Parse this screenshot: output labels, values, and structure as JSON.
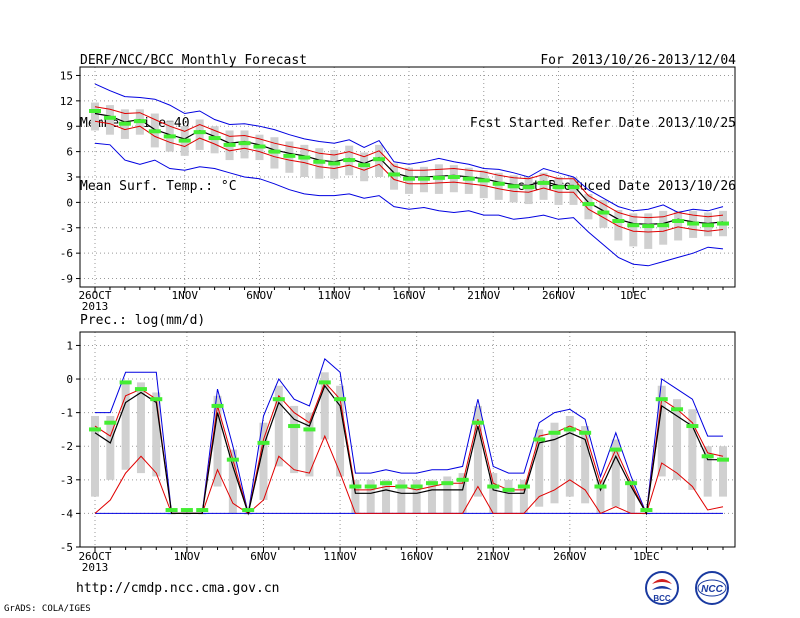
{
  "header": {
    "title": "DERF/NCC/BCC Monthly Forecast",
    "member_size": "Member Size=40",
    "variable": "Mean Surf. Temp.: °C",
    "period": "For 2013/10/26-2013/12/04",
    "started": "Fcst Started Refer Date 2013/10/25",
    "produced": "Fcst Produced Date 2013/10/26"
  },
  "footer": {
    "url": "http://cmdp.ncc.cma.gov.cn",
    "credit": "GrADS: COLA/IGES",
    "logo_left": "BCC",
    "logo_right": "NCC"
  },
  "colors": {
    "ensemble_mean": "#000000",
    "spread": "#e00000",
    "extreme": "#0000e0",
    "box": "#d0d0d0",
    "median_marker": "#44ee33"
  },
  "chart_data": [
    {
      "type": "box-line",
      "title": "Mean Surf. Temp.: °C",
      "x_tick_labels": [
        "26OCT",
        "1NOV",
        "6NOV",
        "11NOV",
        "16NOV",
        "21NOV",
        "26NOV",
        "1DEC"
      ],
      "x_tick_days": [
        0,
        6,
        11,
        16,
        21,
        26,
        31,
        36
      ],
      "x_sublabel": "2013",
      "ylim": [
        -10,
        16
      ],
      "y_ticks": [
        15,
        12,
        9,
        6,
        3,
        0,
        -3,
        -6,
        -9
      ],
      "grid": true,
      "series": [
        {
          "role": "ensemble_mean",
          "values": [
            10.5,
            10.2,
            9.5,
            9.8,
            8.6,
            8.0,
            7.5,
            8.5,
            7.8,
            7.0,
            7.2,
            6.8,
            6.2,
            5.8,
            5.5,
            5.0,
            4.8,
            5.2,
            4.6,
            5.3,
            3.5,
            3.0,
            3.0,
            3.1,
            3.2,
            3.0,
            2.8,
            2.4,
            2.1,
            2.0,
            2.5,
            2.0,
            2.0,
            0.0,
            -1.0,
            -2.0,
            -2.5,
            -2.6,
            -2.5,
            -2.0,
            -2.3,
            -2.5,
            -2.3
          ]
        },
        {
          "role": "spread_upper",
          "values": [
            11.3,
            11.0,
            10.5,
            10.6,
            9.8,
            9.0,
            8.4,
            9.2,
            8.5,
            7.8,
            7.9,
            7.5,
            7.0,
            6.6,
            6.3,
            5.8,
            5.6,
            6.0,
            5.4,
            6.1,
            4.3,
            3.8,
            3.8,
            3.9,
            4.0,
            3.8,
            3.6,
            3.2,
            2.9,
            2.8,
            3.3,
            2.8,
            2.8,
            0.8,
            -0.2,
            -1.2,
            -1.7,
            -1.8,
            -1.7,
            -1.2,
            -1.5,
            -1.7,
            -1.5
          ]
        },
        {
          "role": "spread_lower",
          "values": [
            9.6,
            9.3,
            8.6,
            9.0,
            7.8,
            7.1,
            6.6,
            7.6,
            6.9,
            6.1,
            6.4,
            6.0,
            5.4,
            5.0,
            4.7,
            4.2,
            4.0,
            4.4,
            3.8,
            4.5,
            2.7,
            2.2,
            2.2,
            2.3,
            2.4,
            2.2,
            2.0,
            1.6,
            1.3,
            1.2,
            1.7,
            1.2,
            1.2,
            -0.8,
            -1.8,
            -2.8,
            -3.4,
            -3.5,
            -3.4,
            -2.9,
            -3.2,
            -3.4,
            -3.2
          ]
        },
        {
          "role": "maximum",
          "values": [
            14.0,
            13.2,
            12.5,
            12.4,
            12.2,
            11.5,
            10.5,
            10.8,
            9.8,
            9.2,
            9.3,
            9.0,
            8.6,
            8.0,
            7.5,
            7.2,
            7.0,
            7.4,
            6.5,
            7.3,
            4.8,
            4.5,
            4.8,
            5.2,
            4.8,
            4.5,
            4.0,
            3.9,
            3.5,
            3.0,
            4.0,
            3.5,
            3.0,
            1.5,
            0.5,
            -0.5,
            -1.0,
            -0.8,
            -0.3,
            -1.2,
            -0.8,
            -1.0,
            -0.5
          ]
        },
        {
          "role": "minimum",
          "values": [
            7.0,
            6.8,
            5.0,
            4.5,
            5.0,
            4.0,
            3.8,
            4.2,
            4.0,
            3.5,
            3.0,
            2.8,
            2.2,
            1.5,
            1.0,
            0.8,
            0.8,
            1.0,
            0.5,
            0.8,
            -0.5,
            -0.8,
            -0.6,
            -1.0,
            -1.2,
            -1.0,
            -1.5,
            -1.5,
            -2.0,
            -1.8,
            -1.5,
            -2.0,
            -1.8,
            -3.5,
            -5.0,
            -6.5,
            -7.3,
            -7.5,
            -7.0,
            -6.5,
            -6.0,
            -5.3,
            -5.5
          ]
        },
        {
          "role": "median",
          "values": [
            10.8,
            10.0,
            9.3,
            9.6,
            8.4,
            7.8,
            7.3,
            8.3,
            7.6,
            6.8,
            7.0,
            6.6,
            6.0,
            5.5,
            5.3,
            4.8,
            4.6,
            5.0,
            4.4,
            5.1,
            3.3,
            2.8,
            2.8,
            2.9,
            3.0,
            2.8,
            2.6,
            2.2,
            1.9,
            1.8,
            2.3,
            1.8,
            1.8,
            -0.2,
            -1.2,
            -2.2,
            -2.7,
            -2.8,
            -2.7,
            -2.2,
            -2.5,
            -2.7,
            -2.5
          ]
        },
        {
          "role": "box_upper",
          "values": [
            11.8,
            11.5,
            11.0,
            11.0,
            10.5,
            9.6,
            9.0,
            9.8,
            9.0,
            8.5,
            8.5,
            8.0,
            7.7,
            7.2,
            6.8,
            6.4,
            6.2,
            6.7,
            5.9,
            6.8,
            4.6,
            4.1,
            4.2,
            4.5,
            4.4,
            4.1,
            3.8,
            3.5,
            3.2,
            3.0,
            3.5,
            3.0,
            3.0,
            1.0,
            0.3,
            -0.9,
            -1.3,
            -1.3,
            -1.0,
            -1.0,
            -1.0,
            -1.2,
            -1.0
          ]
        },
        {
          "role": "box_lower",
          "values": [
            8.5,
            8.0,
            7.5,
            8.0,
            6.5,
            6.0,
            5.5,
            6.2,
            5.8,
            5.0,
            5.2,
            5.0,
            4.0,
            3.5,
            3.0,
            2.8,
            2.8,
            3.2,
            2.5,
            3.0,
            1.5,
            1.0,
            1.2,
            1.0,
            1.2,
            1.0,
            0.5,
            0.3,
            0.0,
            -0.2,
            0.3,
            -0.3,
            -0.3,
            -2.0,
            -3.0,
            -4.5,
            -5.2,
            -5.5,
            -5.0,
            -4.5,
            -4.2,
            -4.0,
            -4.0
          ]
        }
      ]
    },
    {
      "type": "box-line",
      "title": "Prec.: log(mm/d)",
      "x_tick_labels": [
        "26OCT",
        "1NOV",
        "6NOV",
        "11NOV",
        "16NOV",
        "21NOV",
        "26NOV",
        "1DEC"
      ],
      "x_tick_days": [
        0,
        6,
        11,
        16,
        21,
        26,
        31,
        36
      ],
      "x_sublabel": "2013",
      "ylim": [
        -5,
        1.4
      ],
      "y_ticks": [
        1,
        0,
        -1,
        -2,
        -3,
        -4,
        -5
      ],
      "grid": true,
      "series": [
        {
          "role": "ensemble_mean",
          "values": [
            -1.6,
            -1.9,
            -0.7,
            -0.4,
            -0.7,
            -4.0,
            -4.0,
            -4.0,
            -1.0,
            -2.6,
            -4.0,
            -2.0,
            -0.7,
            -1.2,
            -1.4,
            -0.2,
            -0.8,
            -3.4,
            -3.4,
            -3.3,
            -3.4,
            -3.4,
            -3.3,
            -3.3,
            -3.3,
            -1.4,
            -3.3,
            -3.4,
            -3.4,
            -1.9,
            -1.8,
            -1.6,
            -1.8,
            -3.3,
            -2.3,
            -3.2,
            -4.0,
            -0.8,
            -1.1,
            -1.4,
            -2.4,
            -2.4
          ]
        },
        {
          "role": "spread_upper",
          "values": [
            -1.4,
            -1.7,
            -0.5,
            -0.3,
            -0.6,
            -4.0,
            -4.0,
            -4.0,
            -0.8,
            -2.4,
            -4.0,
            -1.8,
            -0.5,
            -1.0,
            -1.3,
            -0.1,
            -0.6,
            -3.3,
            -3.3,
            -3.2,
            -3.2,
            -3.3,
            -3.2,
            -3.1,
            -3.1,
            -1.2,
            -3.1,
            -3.3,
            -3.3,
            -1.7,
            -1.6,
            -1.4,
            -1.6,
            -3.1,
            -2.1,
            -3.1,
            -4.0,
            -0.6,
            -0.9,
            -1.3,
            -2.2,
            -2.3
          ]
        },
        {
          "role": "spread_lower",
          "values": [
            -4.0,
            -3.6,
            -2.8,
            -2.3,
            -2.8,
            -4.0,
            -4.0,
            -4.0,
            -2.7,
            -3.7,
            -4.0,
            -3.6,
            -2.3,
            -2.7,
            -2.8,
            -1.7,
            -2.8,
            -4.0,
            -4.0,
            -4.0,
            -4.0,
            -4.0,
            -4.0,
            -4.0,
            -4.0,
            -3.2,
            -4.0,
            -4.0,
            -4.0,
            -3.5,
            -3.3,
            -3.0,
            -3.3,
            -4.0,
            -3.8,
            -4.0,
            -4.0,
            -2.5,
            -2.8,
            -3.2,
            -3.9,
            -3.8
          ]
        },
        {
          "role": "maximum",
          "values": [
            -1.0,
            -1.0,
            0.2,
            0.2,
            0.2,
            -4.0,
            -4.0,
            -4.0,
            -0.3,
            -2.0,
            -4.0,
            -1.1,
            0.0,
            -0.6,
            -0.8,
            0.6,
            0.2,
            -2.8,
            -2.8,
            -2.7,
            -2.8,
            -2.8,
            -2.7,
            -2.7,
            -2.6,
            -0.6,
            -2.6,
            -2.8,
            -2.8,
            -1.3,
            -1.0,
            -0.9,
            -1.2,
            -2.9,
            -1.6,
            -2.9,
            -4.0,
            0.0,
            -0.3,
            -0.6,
            -1.7,
            -1.7
          ]
        },
        {
          "role": "minimum",
          "values": [
            -4.0,
            -4.0,
            -4.0,
            -4.0,
            -4.0,
            -4.0,
            -4.0,
            -4.0,
            -4.0,
            -4.0,
            -4.0,
            -4.0,
            -4.0,
            -4.0,
            -4.0,
            -4.0,
            -4.0,
            -4.0,
            -4.0,
            -4.0,
            -4.0,
            -4.0,
            -4.0,
            -4.0,
            -4.0,
            -4.0,
            -4.0,
            -4.0,
            -4.0,
            -4.0,
            -4.0,
            -4.0,
            -4.0,
            -4.0,
            -4.0,
            -4.0,
            -4.0,
            -4.0,
            -4.0,
            -4.0,
            -4.0,
            -4.0
          ]
        },
        {
          "role": "median",
          "values": [
            -1.5,
            -1.3,
            -0.1,
            -0.3,
            -0.6,
            -3.9,
            -3.9,
            -3.9,
            -0.8,
            -2.4,
            -3.9,
            -1.9,
            -0.6,
            -1.4,
            -1.5,
            -0.1,
            -0.6,
            -3.2,
            -3.2,
            -3.1,
            -3.2,
            -3.2,
            -3.1,
            -3.1,
            -3.0,
            -1.3,
            -3.2,
            -3.3,
            -3.2,
            -1.8,
            -1.6,
            -1.5,
            -1.6,
            -3.2,
            -2.1,
            -3.1,
            -3.9,
            -0.6,
            -0.9,
            -1.4,
            -2.3,
            -2.4
          ]
        },
        {
          "role": "box_upper",
          "values": [
            -1.1,
            -1.1,
            -0.1,
            -0.1,
            -0.4,
            -4.0,
            -4.0,
            -4.0,
            -0.5,
            -2.1,
            -4.0,
            -1.3,
            -0.2,
            -0.8,
            -1.0,
            0.2,
            -0.2,
            -3.0,
            -3.0,
            -3.0,
            -3.0,
            -3.0,
            -3.0,
            -2.9,
            -2.8,
            -0.8,
            -2.8,
            -3.0,
            -3.0,
            -1.5,
            -1.3,
            -1.1,
            -1.4,
            -3.0,
            -1.8,
            -3.0,
            -4.0,
            -0.2,
            -0.6,
            -0.9,
            -2.0,
            -2.0
          ]
        },
        {
          "role": "box_lower",
          "values": [
            -3.5,
            -3.0,
            -2.7,
            -2.8,
            -2.9,
            -4.0,
            -4.0,
            -4.0,
            -3.2,
            -4.0,
            -4.0,
            -3.6,
            -2.6,
            -2.8,
            -2.9,
            -1.8,
            -2.9,
            -4.0,
            -4.0,
            -4.0,
            -4.0,
            -4.0,
            -4.0,
            -4.0,
            -4.0,
            -3.5,
            -4.0,
            -4.0,
            -4.0,
            -3.8,
            -3.7,
            -3.5,
            -3.7,
            -4.0,
            -3.8,
            -4.0,
            -4.0,
            -2.9,
            -3.0,
            -3.3,
            -3.5,
            -3.5
          ]
        }
      ]
    }
  ]
}
